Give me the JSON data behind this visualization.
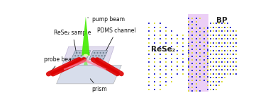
{
  "figsize": [
    3.78,
    1.49
  ],
  "dpi": 100,
  "bg_color": "#ffffff",
  "left_panel": {
    "xlim": [
      0,
      10
    ],
    "ylim": [
      0,
      10
    ],
    "prism_color": "#d0d8e8",
    "prism_shadow": "#b0b8c8",
    "pdms_color": "#c8c0e0",
    "pdms_alpha": 0.55,
    "pump_beam_color": "#44ee00",
    "probe_beam_color": "#dd0000",
    "pink_beam_color": "#ff80a0",
    "scatter_color": "#8899aa",
    "labels": {
      "pump_beam": "pump beam",
      "rese2_sample": "ReSe₂ sample",
      "pdms_channel": "PDMS channel",
      "probe_beam": "probe beam",
      "prism": "prism"
    },
    "label_fontsize": 5.5
  },
  "right_panel": {
    "xlim": [
      0,
      10
    ],
    "ylim": [
      0,
      10
    ],
    "bp_atom1_color": "#dddd44",
    "bp_atom2_color": "#3333cc",
    "rese2_atom1_color": "#dddd44",
    "rese2_atom2_color": "#3333cc",
    "hetero_bg_color": "#e0b0f0",
    "hetero_bg_alpha": 0.6,
    "rese2_label": "ReSe₂",
    "bp_label": "BP",
    "label_fontsize": 7.5,
    "label_color": "#222222"
  }
}
